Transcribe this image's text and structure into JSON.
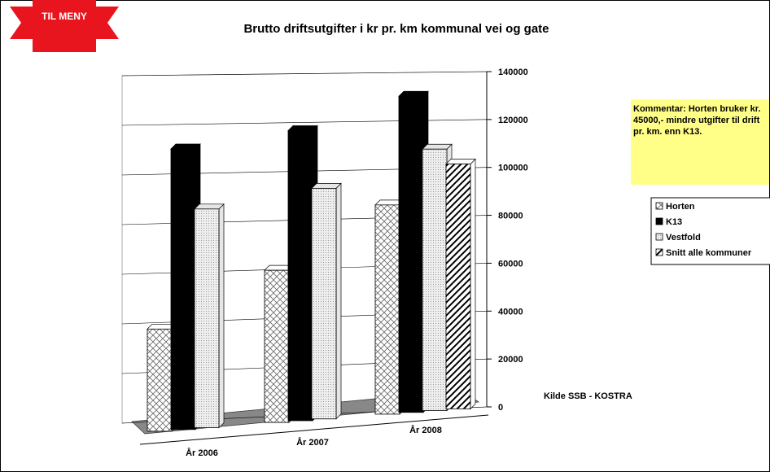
{
  "chart_data": {
    "type": "bar",
    "title": "Brutto driftsutgifter i kr pr. km kommunal vei og gate",
    "button": "TIL MENY",
    "comment": "Kommentar: Horten bruker kr. 45000,- mindre utgifter til drift pr. km. enn K13.",
    "source": "Kilde SSB - KOSTRA",
    "categories": [
      "År 2006",
      "År 2007",
      "År 2008"
    ],
    "series": [
      {
        "name": "Horten",
        "color": "#ffffff",
        "values": [
          43000,
          64000,
          88000
        ]
      },
      {
        "name": "K13",
        "color": "#000000",
        "values": [
          118000,
          122000,
          133000
        ]
      },
      {
        "name": "Vestfold",
        "color": "#e6e6e6",
        "values": [
          92000,
          97000,
          110000
        ]
      },
      {
        "name": "Snitt alle kommuner",
        "color": "#ffffff",
        "values": [
          null,
          null,
          103000
        ]
      }
    ],
    "ylim": [
      0,
      140000
    ],
    "yticks": [
      0,
      20000,
      40000,
      60000,
      80000,
      100000,
      120000,
      140000
    ],
    "grid": true
  }
}
